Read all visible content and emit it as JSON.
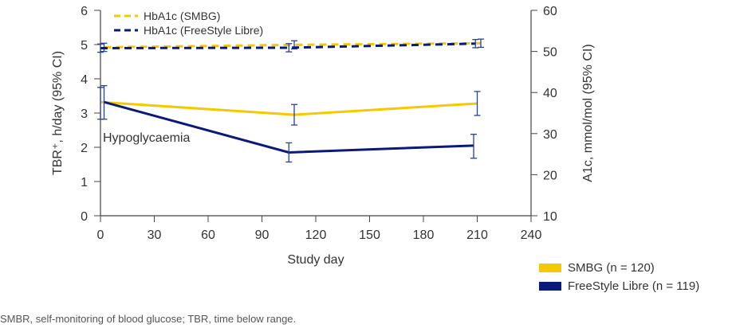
{
  "chart_data": {
    "type": "line",
    "x_axis": {
      "label": "Study day",
      "range": [
        0,
        240
      ],
      "ticks": [
        "0",
        "30",
        "60",
        "90",
        "120",
        "150",
        "180",
        "210",
        "240"
      ]
    },
    "y_left": {
      "label": "TBR⁺, h/day (95% CI)",
      "range": [
        0,
        6
      ],
      "ticks": [
        "0",
        "1",
        "2",
        "3",
        "4",
        "5",
        "6"
      ]
    },
    "y_right": {
      "label": "A1c, mmol/mol (95% CI)",
      "range": [
        10,
        60
      ],
      "ticks": [
        "10",
        "20",
        "30",
        "40",
        "50",
        "60"
      ]
    },
    "annotation": "Hypoglycaemia",
    "tbr_series": [
      {
        "name": "SMBG (n = 120)",
        "color": "#F5C800",
        "points": [
          {
            "x": 0,
            "y": 3.32,
            "lo": 2.82,
            "hi": 3.75
          },
          {
            "x": 108,
            "y": 2.95,
            "lo": 2.65,
            "hi": 3.25
          },
          {
            "x": 210,
            "y": 3.28,
            "lo": 2.93,
            "hi": 3.63
          }
        ]
      },
      {
        "name": "FreeStyle Libre (n = 119)",
        "color": "#0A1A7A",
        "points": [
          {
            "x": 2,
            "y": 3.32,
            "lo": 2.82,
            "hi": 3.8
          },
          {
            "x": 105,
            "y": 1.85,
            "lo": 1.57,
            "hi": 2.13
          },
          {
            "x": 208,
            "y": 2.05,
            "lo": 1.68,
            "hi": 2.38
          }
        ]
      }
    ],
    "hba1c_series": [
      {
        "name": "HbA1c (SMBG)",
        "color": "#F5C800",
        "points": [
          {
            "x": 2,
            "y": 51.0,
            "lo": 50.0,
            "hi": 52.0
          },
          {
            "x": 108,
            "y": 51.6,
            "lo": 50.6,
            "hi": 52.6
          },
          {
            "x": 212,
            "y": 52.0,
            "lo": 51.0,
            "hi": 53.0
          }
        ]
      },
      {
        "name": "HbA1c (FreeStyle Libre)",
        "color": "#0A1A7A",
        "points": [
          {
            "x": 0,
            "y": 50.8,
            "lo": 49.8,
            "hi": 51.8
          },
          {
            "x": 105,
            "y": 50.9,
            "lo": 49.9,
            "hi": 51.9
          },
          {
            "x": 209,
            "y": 51.9,
            "lo": 50.9,
            "hi": 52.9
          }
        ]
      }
    ]
  },
  "legend_top": [
    {
      "label": "HbA1c (SMBG)",
      "color": "#F5C800"
    },
    {
      "label": "HbA1c (FreeStyle Libre)",
      "color": "#0A1A7A"
    }
  ],
  "legend_bottom": [
    {
      "label": "SMBG (n = 120)",
      "color": "#F5C800"
    },
    {
      "label": "FreeStyle Libre (n = 119)",
      "color": "#0A1A7A"
    }
  ],
  "footnote": "SMBR, self-monitoring of blood glucose; TBR, time below range."
}
